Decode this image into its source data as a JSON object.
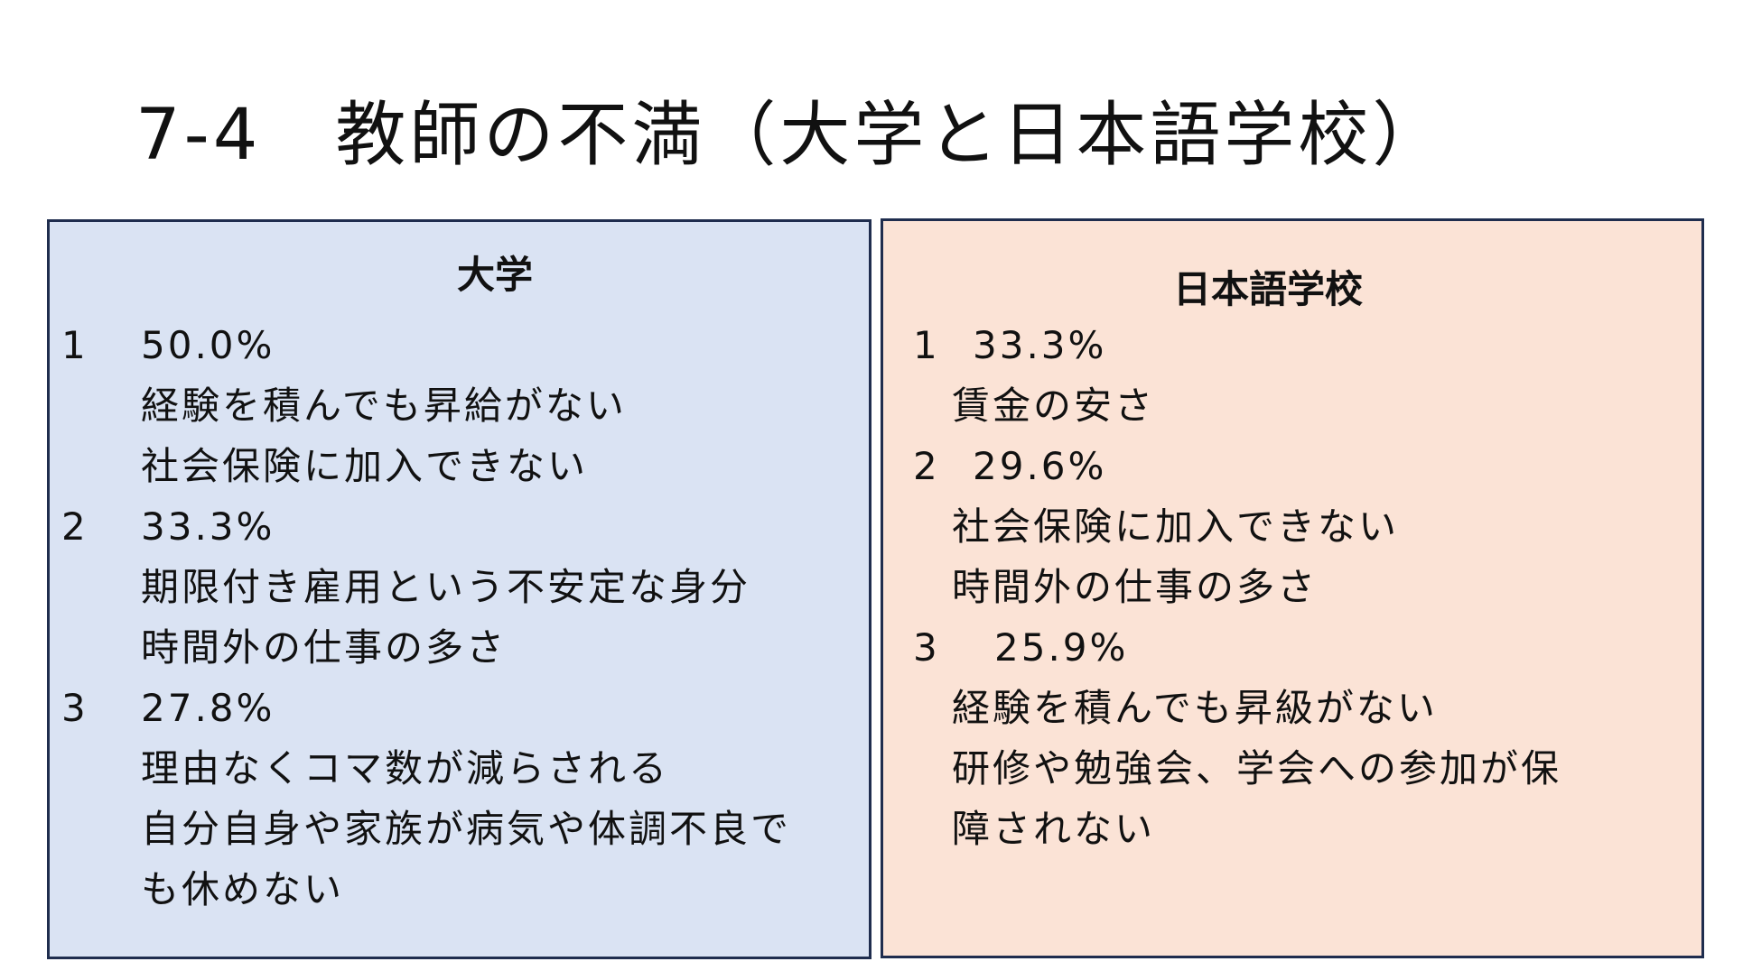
{
  "title": "7-4　教師の不満（大学と日本語学校）",
  "university": {
    "heading": "大学",
    "items": [
      {
        "rank": "1",
        "percent": "50.0%",
        "reasons": [
          "経験を積んでも昇給がない",
          "社会保険に加入できない"
        ]
      },
      {
        "rank": "2",
        "percent": "33.3%",
        "reasons": [
          "期限付き雇用という不安定な身分",
          "時間外の仕事の多さ"
        ]
      },
      {
        "rank": "3",
        "percent": "27.8%",
        "reasons": [
          "理由なくコマ数が減らされる",
          "自分自身や家族が病気や体調不良で",
          "も休めない"
        ]
      }
    ]
  },
  "language_school": {
    "heading": "日本語学校",
    "items": [
      {
        "rank": "1",
        "percent": "33.3%",
        "reasons": [
          "賃金の安さ"
        ]
      },
      {
        "rank": "2",
        "percent": "29.6%",
        "reasons": [
          "社会保険に加入できない",
          "時間外の仕事の多さ"
        ]
      },
      {
        "rank": "3",
        "percent": "25.9%",
        "reasons": [
          "経験を積んでも昇級がない",
          "研修や勉強会、学会への参加が保",
          "障されない"
        ]
      }
    ]
  },
  "colors": {
    "university_bg": "#dae3f3",
    "school_bg": "#fbe3d6",
    "border": "#1f2d4e"
  }
}
